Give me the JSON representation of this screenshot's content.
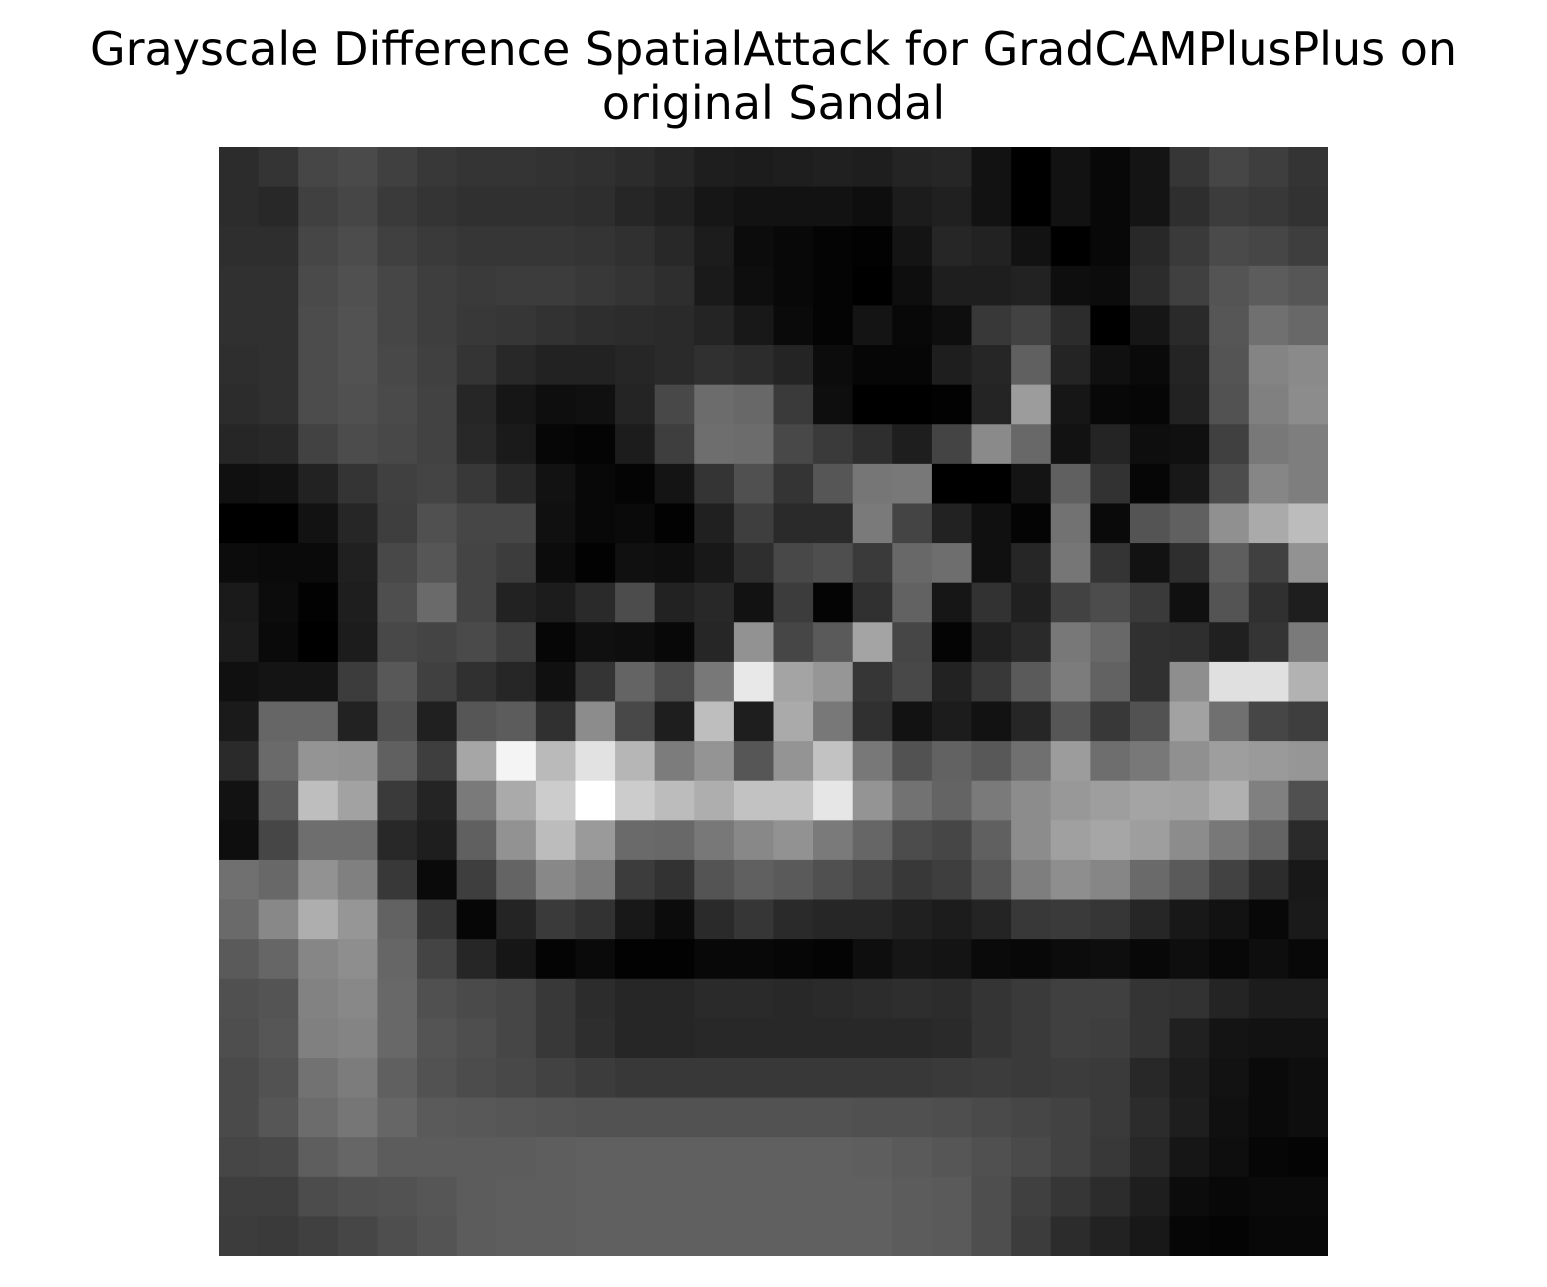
{
  "chart_data": {
    "type": "heatmap",
    "title_lines": [
      "Grayscale Difference SpatialAttack for GradCAMPlusPlus on",
      "original Sandal"
    ],
    "colormap": "gray",
    "axes_visible": false,
    "rows": 28,
    "cols": 28,
    "values": [
      [
        44,
        52,
        70,
        74,
        64,
        56,
        52,
        52,
        50,
        48,
        44,
        38,
        30,
        28,
        30,
        32,
        30,
        36,
        38,
        18,
        0,
        18,
        8,
        20,
        54,
        70,
        62,
        52
      ],
      [
        44,
        40,
        64,
        70,
        58,
        52,
        48,
        48,
        48,
        46,
        38,
        32,
        22,
        18,
        18,
        18,
        14,
        28,
        32,
        18,
        0,
        18,
        8,
        20,
        46,
        60,
        56,
        50
      ],
      [
        46,
        46,
        70,
        76,
        64,
        58,
        54,
        54,
        54,
        52,
        48,
        40,
        28,
        12,
        8,
        4,
        2,
        20,
        38,
        34,
        18,
        0,
        8,
        40,
        58,
        74,
        70,
        62
      ],
      [
        48,
        48,
        74,
        80,
        70,
        62,
        58,
        60,
        60,
        56,
        52,
        46,
        26,
        14,
        8,
        4,
        0,
        14,
        30,
        30,
        34,
        14,
        12,
        44,
        64,
        84,
        92,
        86
      ],
      [
        48,
        48,
        76,
        82,
        70,
        62,
        56,
        54,
        50,
        46,
        44,
        42,
        36,
        24,
        10,
        4,
        20,
        8,
        14,
        56,
        66,
        44,
        0,
        22,
        42,
        86,
        112,
        104
      ],
      [
        46,
        48,
        76,
        82,
        72,
        64,
        52,
        40,
        34,
        34,
        38,
        42,
        48,
        44,
        36,
        12,
        6,
        6,
        30,
        38,
        96,
        36,
        16,
        10,
        36,
        84,
        132,
        138
      ],
      [
        44,
        48,
        76,
        80,
        74,
        66,
        38,
        22,
        14,
        16,
        36,
        72,
        108,
        104,
        58,
        14,
        0,
        0,
        2,
        36,
        156,
        22,
        8,
        6,
        34,
        82,
        128,
        140
      ],
      [
        38,
        40,
        66,
        76,
        72,
        66,
        40,
        26,
        6,
        4,
        28,
        62,
        110,
        108,
        72,
        58,
        46,
        30,
        68,
        138,
        104,
        18,
        36,
        14,
        16,
        64,
        120,
        126
      ],
      [
        16,
        18,
        34,
        52,
        64,
        68,
        56,
        40,
        18,
        8,
        4,
        20,
        52,
        80,
        52,
        86,
        118,
        120,
        0,
        0,
        20,
        96,
        50,
        6,
        24,
        76,
        134,
        126
      ],
      [
        0,
        0,
        18,
        38,
        62,
        80,
        70,
        70,
        16,
        8,
        10,
        2,
        32,
        62,
        42,
        42,
        122,
        68,
        34,
        16,
        4,
        114,
        10,
        84,
        96,
        144,
        170,
        188
      ],
      [
        12,
        10,
        10,
        32,
        72,
        86,
        68,
        60,
        12,
        2,
        16,
        14,
        24,
        46,
        72,
        78,
        58,
        104,
        110,
        16,
        38,
        118,
        52,
        18,
        46,
        94,
        64,
        146
      ],
      [
        26,
        12,
        2,
        30,
        78,
        106,
        68,
        34,
        28,
        42,
        76,
        34,
        40,
        18,
        60,
        4,
        48,
        98,
        22,
        50,
        32,
        66,
        76,
        58,
        16,
        84,
        48,
        30
      ],
      [
        28,
        10,
        0,
        28,
        72,
        68,
        74,
        62,
        6,
        16,
        14,
        8,
        38,
        146,
        70,
        90,
        164,
        70,
        4,
        32,
        42,
        120,
        104,
        48,
        46,
        32,
        52,
        122
      ],
      [
        16,
        20,
        20,
        60,
        88,
        64,
        48,
        38,
        16,
        52,
        100,
        76,
        120,
        232,
        164,
        150,
        54,
        72,
        34,
        56,
        90,
        124,
        98,
        48,
        142,
        224,
        224,
        178
      ],
      [
        26,
        102,
        102,
        34,
        80,
        32,
        86,
        92,
        48,
        140,
        72,
        30,
        190,
        30,
        170,
        120,
        48,
        18,
        28,
        18,
        38,
        86,
        56,
        82,
        162,
        112,
        70,
        62
      ],
      [
        42,
        106,
        148,
        146,
        96,
        62,
        166,
        244,
        186,
        226,
        182,
        124,
        148,
        86,
        148,
        194,
        120,
        82,
        98,
        88,
        112,
        156,
        110,
        120,
        144,
        158,
        154,
        150
      ],
      [
        18,
        90,
        190,
        162,
        58,
        36,
        122,
        170,
        204,
        255,
        204,
        188,
        174,
        194,
        194,
        230,
        148,
        114,
        100,
        122,
        140,
        152,
        158,
        164,
        162,
        176,
        128,
        80
      ],
      [
        14,
        70,
        110,
        110,
        40,
        30,
        96,
        146,
        188,
        154,
        106,
        104,
        120,
        136,
        146,
        122,
        102,
        76,
        70,
        96,
        140,
        160,
        166,
        158,
        140,
        120,
        100,
        42
      ],
      [
        112,
        104,
        146,
        128,
        56,
        10,
        62,
        100,
        136,
        124,
        60,
        50,
        84,
        96,
        90,
        80,
        70,
        56,
        62,
        86,
        126,
        142,
        134,
        106,
        90,
        66,
        44,
        24
      ],
      [
        106,
        136,
        174,
        150,
        98,
        54,
        6,
        36,
        58,
        50,
        24,
        12,
        42,
        54,
        42,
        38,
        38,
        32,
        28,
        36,
        56,
        58,
        54,
        38,
        24,
        18,
        8,
        26
      ],
      [
        90,
        102,
        134,
        142,
        102,
        68,
        38,
        22,
        4,
        10,
        2,
        2,
        8,
        8,
        6,
        4,
        14,
        22,
        20,
        10,
        8,
        12,
        14,
        8,
        14,
        8,
        14,
        8
      ],
      [
        80,
        84,
        130,
        136,
        104,
        80,
        74,
        70,
        56,
        44,
        38,
        38,
        42,
        42,
        40,
        42,
        44,
        46,
        44,
        52,
        58,
        64,
        64,
        52,
        50,
        36,
        28,
        28
      ],
      [
        78,
        86,
        128,
        132,
        104,
        84,
        78,
        70,
        56,
        46,
        38,
        38,
        40,
        40,
        40,
        40,
        40,
        40,
        42,
        52,
        58,
        64,
        62,
        52,
        32,
        20,
        18,
        18
      ],
      [
        74,
        82,
        114,
        124,
        96,
        82,
        76,
        72,
        66,
        60,
        56,
        56,
        56,
        56,
        56,
        56,
        56,
        56,
        58,
        60,
        58,
        60,
        58,
        40,
        28,
        18,
        10,
        14
      ],
      [
        74,
        86,
        108,
        118,
        102,
        90,
        88,
        86,
        84,
        82,
        82,
        82,
        82,
        82,
        82,
        82,
        80,
        80,
        78,
        74,
        70,
        66,
        58,
        44,
        30,
        16,
        10,
        14
      ],
      [
        70,
        72,
        94,
        102,
        92,
        92,
        92,
        92,
        94,
        96,
        96,
        96,
        96,
        96,
        96,
        96,
        94,
        90,
        86,
        80,
        74,
        66,
        56,
        40,
        22,
        14,
        6,
        4
      ],
      [
        62,
        62,
        76,
        80,
        82,
        86,
        92,
        94,
        94,
        96,
        96,
        96,
        96,
        96,
        96,
        96,
        96,
        92,
        90,
        78,
        64,
        54,
        44,
        30,
        12,
        8,
        10,
        10
      ],
      [
        60,
        58,
        64,
        70,
        78,
        84,
        92,
        94,
        94,
        96,
        96,
        96,
        96,
        96,
        96,
        96,
        96,
        92,
        90,
        78,
        60,
        44,
        34,
        24,
        6,
        4,
        8,
        8
      ]
    ]
  }
}
